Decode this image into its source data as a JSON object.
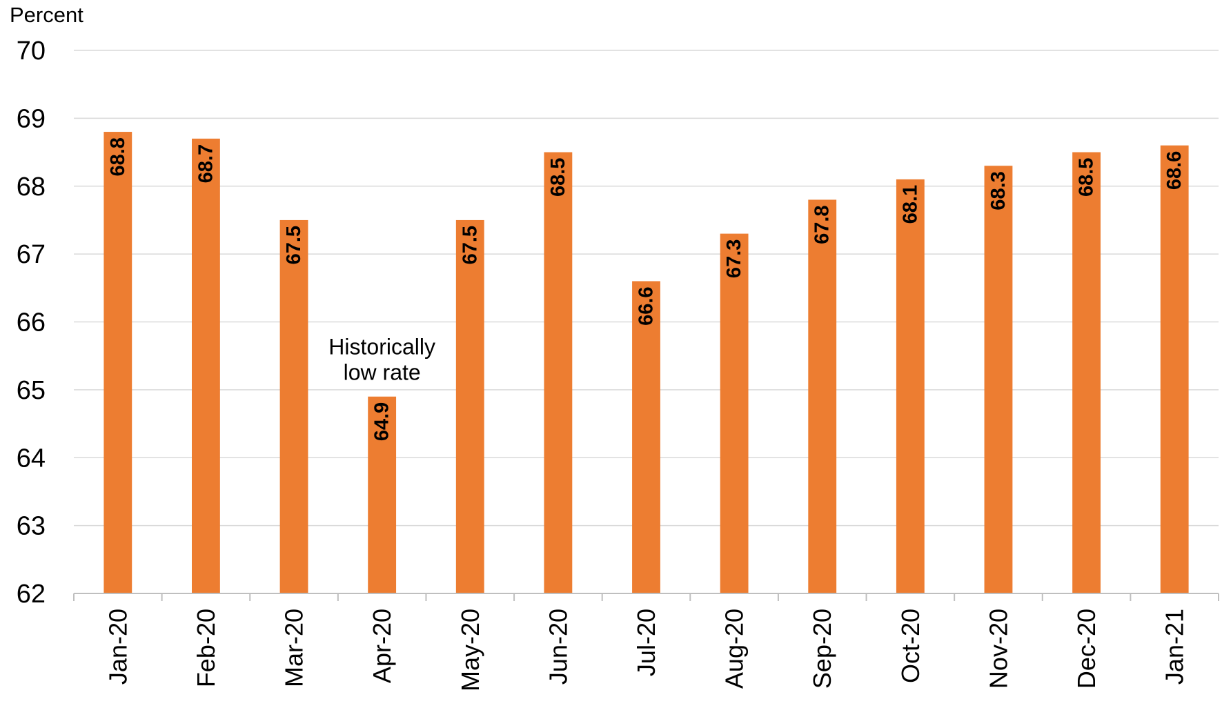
{
  "chart_data": {
    "type": "bar",
    "ylabel": "Percent",
    "xlabel": "",
    "ylim": [
      62,
      70
    ],
    "yticks": [
      62,
      63,
      64,
      65,
      66,
      67,
      68,
      69,
      70
    ],
    "grid": true,
    "categories": [
      "Jan-20",
      "Feb-20",
      "Mar-20",
      "Apr-20",
      "May-20",
      "Jun-20",
      "Jul-20",
      "Aug-20",
      "Sep-20",
      "Oct-20",
      "Nov-20",
      "Dec-20",
      "Jan-21"
    ],
    "values": [
      68.8,
      68.7,
      67.5,
      64.9,
      67.5,
      68.5,
      66.6,
      67.3,
      67.8,
      68.1,
      68.3,
      68.5,
      68.6
    ],
    "data_labels": [
      "68.8",
      "68.7",
      "67.5",
      "64.9",
      "67.5",
      "68.5",
      "66.6",
      "67.3",
      "67.8",
      "68.1",
      "68.3",
      "68.5",
      "68.6"
    ],
    "annotations": [
      {
        "category": "Apr-20",
        "lines": [
          "Historically",
          "low rate"
        ]
      }
    ],
    "colors": {
      "bar": "#ED7D31",
      "grid": "#D9D9D9",
      "axis": "#BFBFBF"
    }
  }
}
